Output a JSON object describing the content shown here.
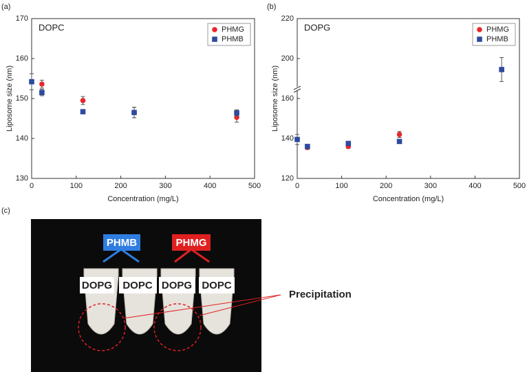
{
  "chart_data": [
    {
      "type": "scatter",
      "label": "(a)",
      "title": "DOPC",
      "x_label": "Concentration (mg/L)",
      "y_label": "Liposome size (nm)",
      "xlim": [
        0,
        500
      ],
      "xticks": [
        0,
        100,
        200,
        300,
        400,
        500
      ],
      "ylim": [
        130,
        170
      ],
      "yticks": [
        130,
        140,
        150,
        160,
        170
      ],
      "legend": "upper right",
      "series": [
        {
          "name": "PHMG",
          "color": "#e8262b",
          "marker": "circle",
          "x": [
            23,
            115,
            230,
            460
          ],
          "values": [
            153.6,
            149.5,
            146.5,
            145.3
          ],
          "errors": [
            1,
            1,
            1.3,
            1.2
          ]
        },
        {
          "name": "PHMB",
          "color": "#2e4a9e",
          "marker": "square",
          "x": [
            0,
            23,
            115,
            230,
            460
          ],
          "values": [
            154.2,
            151.5,
            146.7,
            146.5,
            146.4
          ],
          "errors": [
            2,
            0.8,
            0.3,
            1.3,
            0.8
          ]
        }
      ]
    },
    {
      "type": "scatter",
      "label": "(b)",
      "title": "DOPG",
      "x_label": "Concentration (mg/L)",
      "y_label": "Liposome size (nm)",
      "xlim": [
        0,
        500
      ],
      "xticks": [
        0,
        100,
        200,
        300,
        400,
        500
      ],
      "ylim": [
        120,
        220
      ],
      "ybreak": [
        160,
        180
      ],
      "yticks": [
        120,
        140,
        160,
        200,
        220
      ],
      "legend": "upper right",
      "series": [
        {
          "name": "PHMG",
          "color": "#e8262b",
          "marker": "circle",
          "x": [
            23,
            115,
            230
          ],
          "values": [
            135.5,
            136,
            142
          ],
          "errors": [
            1,
            1,
            1.5
          ]
        },
        {
          "name": "PHMB",
          "color": "#2e4a9e",
          "marker": "square",
          "x": [
            0,
            23,
            115,
            230,
            460
          ],
          "values": [
            139.5,
            136,
            137.5,
            138.5,
            194.5
          ],
          "errors": [
            2.5,
            1,
            1,
            1,
            6
          ]
        }
      ]
    }
  ],
  "photo": {
    "label": "(c)",
    "groups": [
      "PHMB",
      "PHMG"
    ],
    "tubes": [
      "DOPG",
      "DOPC",
      "DOPG",
      "DOPC"
    ],
    "annotation": "Precipitation"
  }
}
